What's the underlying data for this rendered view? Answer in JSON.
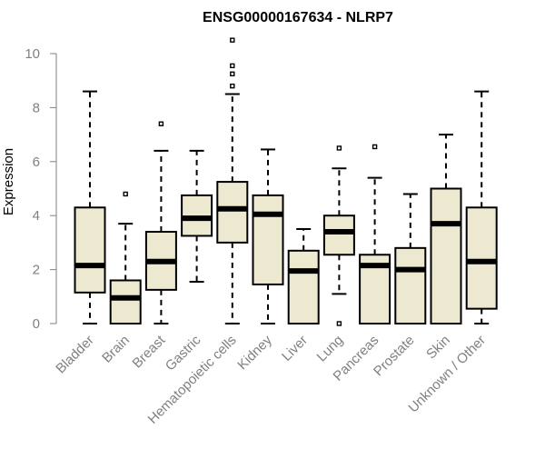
{
  "chart_data": {
    "type": "boxplot",
    "title": "ENSG00000167634 - NLRP7",
    "xlabel": "",
    "ylabel": "Expression",
    "ylim": [
      0,
      10.5
    ],
    "yticks": [
      0,
      2,
      4,
      6,
      8,
      10
    ],
    "grid": false,
    "categories": [
      "Bladder",
      "Brain",
      "Breast",
      "Gastric",
      "Hematopoietic cells",
      "Kidney",
      "Liver",
      "Lung",
      "Pancreas",
      "Prostate",
      "Skin",
      "Unknown / Other"
    ],
    "boxes": [
      {
        "whisker_low": 0,
        "q1": 1.15,
        "median": 2.15,
        "q3": 4.3,
        "whisker_high": 8.6,
        "outliers": []
      },
      {
        "whisker_low": 0,
        "q1": 0,
        "median": 0.95,
        "q3": 1.6,
        "whisker_high": 3.7,
        "outliers": [
          4.8
        ]
      },
      {
        "whisker_low": 0,
        "q1": 1.25,
        "median": 2.3,
        "q3": 3.4,
        "whisker_high": 6.4,
        "outliers": [
          7.4
        ]
      },
      {
        "whisker_low": 1.55,
        "q1": 3.25,
        "median": 3.9,
        "q3": 4.75,
        "whisker_high": 6.4,
        "outliers": []
      },
      {
        "whisker_low": 0,
        "q1": 3.0,
        "median": 4.25,
        "q3": 5.25,
        "whisker_high": 8.5,
        "outliers": [
          8.8,
          9.25,
          9.55,
          10.5
        ]
      },
      {
        "whisker_low": 0,
        "q1": 1.45,
        "median": 4.05,
        "q3": 4.75,
        "whisker_high": 6.45,
        "outliers": []
      },
      {
        "whisker_low": 0,
        "q1": 0,
        "median": 1.95,
        "q3": 2.7,
        "whisker_high": 3.5,
        "outliers": []
      },
      {
        "whisker_low": 1.1,
        "q1": 2.55,
        "median": 3.4,
        "q3": 4.0,
        "whisker_high": 5.75,
        "outliers": [
          6.5,
          0
        ]
      },
      {
        "whisker_low": 0,
        "q1": 0,
        "median": 2.15,
        "q3": 2.55,
        "whisker_high": 5.4,
        "outliers": [
          6.55
        ]
      },
      {
        "whisker_low": 0,
        "q1": 0,
        "median": 2.0,
        "q3": 2.8,
        "whisker_high": 4.8,
        "outliers": []
      },
      {
        "whisker_low": 0,
        "q1": 0,
        "median": 3.7,
        "q3": 5.0,
        "whisker_high": 7.0,
        "outliers": []
      },
      {
        "whisker_low": 0,
        "q1": 0.55,
        "median": 2.3,
        "q3": 4.3,
        "whisker_high": 8.6,
        "outliers": []
      }
    ],
    "colors": {
      "box_fill": "#ede8d0",
      "box_stroke": "#000000",
      "axis_text": "#808080",
      "axis_line": "#808080",
      "title": "#000000"
    }
  }
}
